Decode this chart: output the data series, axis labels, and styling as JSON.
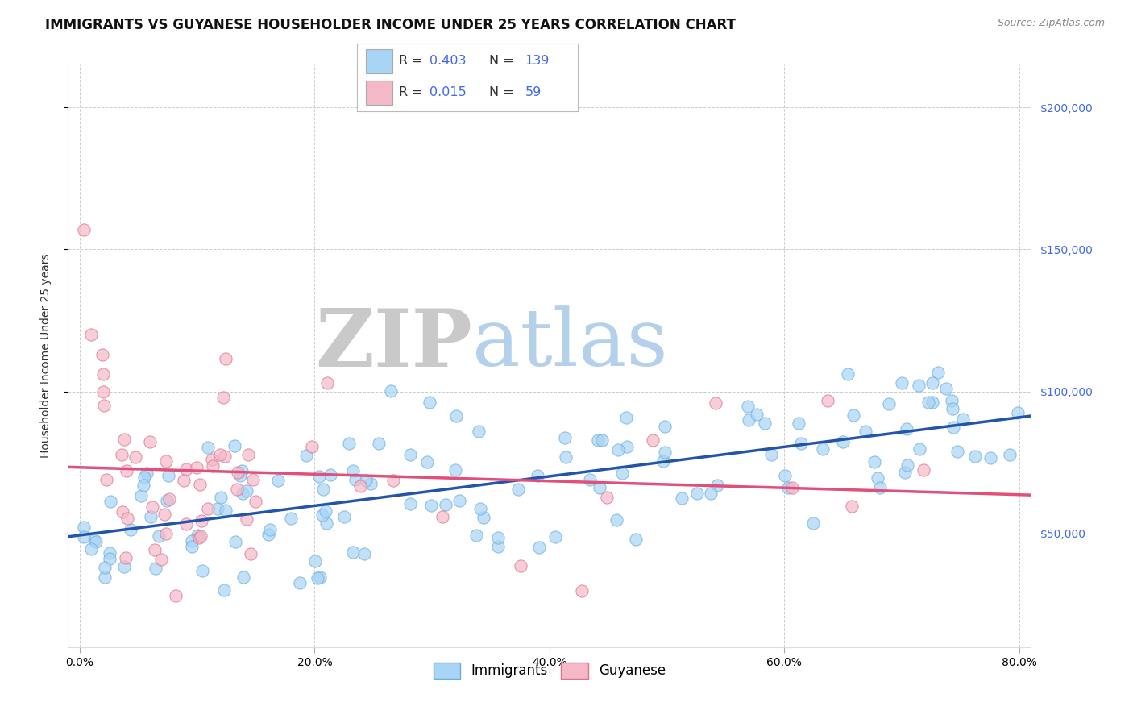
{
  "title": "IMMIGRANTS VS GUYANESE HOUSEHOLDER INCOME UNDER 25 YEARS CORRELATION CHART",
  "source_text": "Source: ZipAtlas.com",
  "ylabel": "Householder Income Under 25 years",
  "xlim": [
    -1,
    81
  ],
  "ylim": [
    10000,
    215000
  ],
  "ytick_labels": [
    "$50,000",
    "$100,000",
    "$150,000",
    "$200,000"
  ],
  "ytick_values": [
    50000,
    100000,
    150000,
    200000
  ],
  "xtick_labels": [
    "0.0%",
    "20.0%",
    "40.0%",
    "60.0%",
    "80.0%"
  ],
  "xtick_values": [
    0,
    20,
    40,
    60,
    80
  ],
  "imm_color": "#A8D4F5",
  "imm_edge_color": "#6aaedd",
  "imm_line_color": "#2255AA",
  "guy_color": "#F5B8C8",
  "guy_edge_color": "#e07090",
  "guy_line_color": "#E0507A",
  "R_imm": "0.403",
  "N_imm": "139",
  "R_guy": "0.015",
  "N_guy": "59",
  "legend_text_color": "#333333",
  "legend_blue_color": "#4169E1",
  "watermark_zip_color": "#c8c8c8",
  "watermark_atlas_color": "#a8c8e8",
  "background_color": "#ffffff",
  "grid_color": "#cccccc",
  "title_fontsize": 12,
  "ylabel_fontsize": 10,
  "tick_fontsize": 10,
  "ytick_color": "#4169E1",
  "source_color": "#888888"
}
